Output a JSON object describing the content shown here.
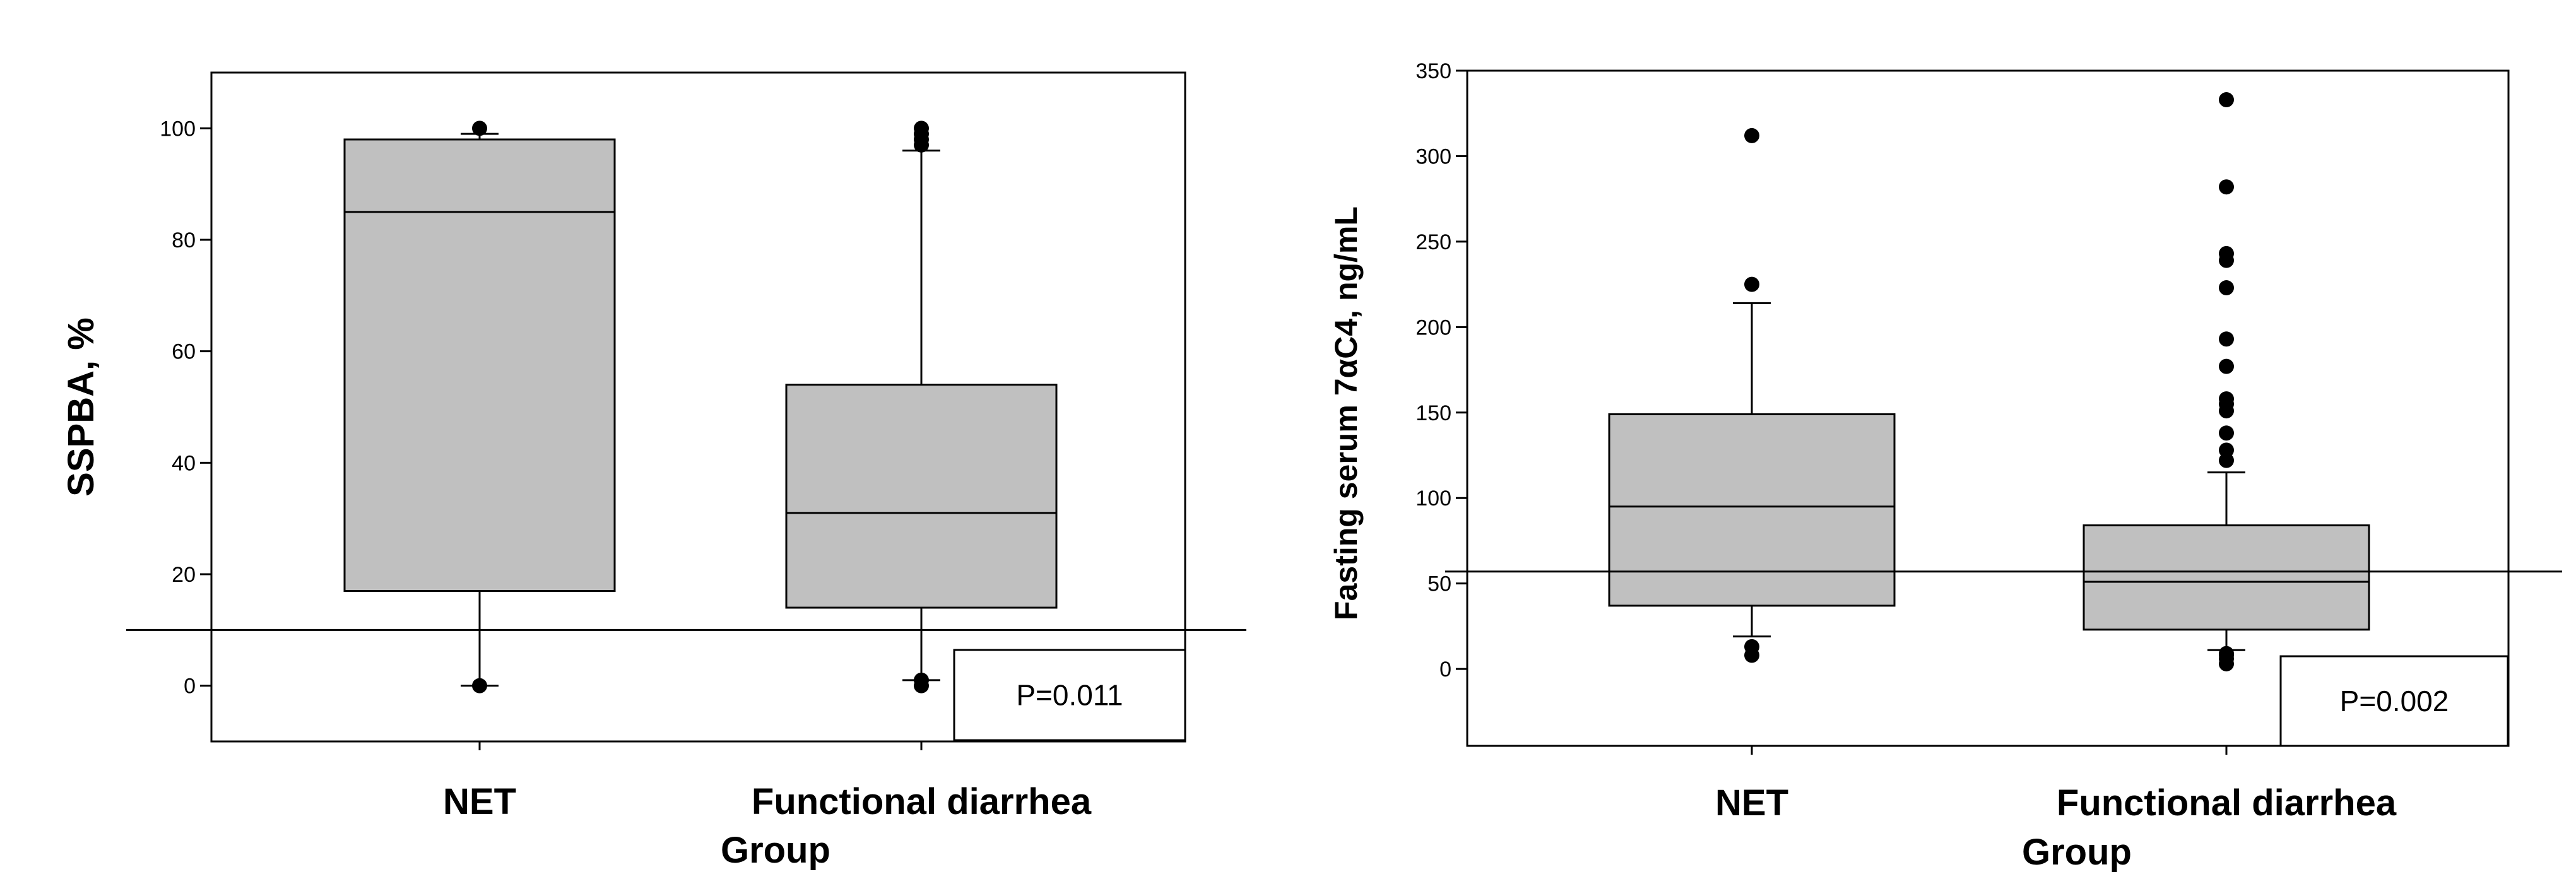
{
  "chart_data": [
    {
      "type": "box",
      "ylabel": "SSPBA, %",
      "ylim": [
        -10,
        110
      ],
      "yticks": [
        0,
        20,
        40,
        60,
        80,
        100
      ],
      "categories": [
        "NET",
        "Functional diarrhea"
      ],
      "group_label": "Group",
      "reference_line": 10,
      "p_value": "P=0.011",
      "boxes": [
        {
          "whisker_low": 0,
          "q1": 17,
          "median": 85,
          "q3": 98,
          "whisker_high": 99,
          "outliers": [
            0,
            100
          ]
        },
        {
          "whisker_low": 1,
          "q1": 14,
          "median": 31,
          "q3": 54,
          "whisker_high": 96,
          "outliers": [
            0,
            1,
            97,
            98,
            99,
            100
          ]
        }
      ]
    },
    {
      "type": "box",
      "ylabel": "Fasting serum 7αC4, ng/mL",
      "ylim": [
        -45,
        350
      ],
      "yticks": [
        0,
        50,
        100,
        150,
        200,
        250,
        300,
        350
      ],
      "categories": [
        "NET",
        "Functional diarrhea"
      ],
      "group_label": "Group",
      "reference_line": 57,
      "p_value": "P=0.002",
      "boxes": [
        {
          "whisker_low": 19,
          "q1": 37,
          "median": 95,
          "q3": 149,
          "whisker_high": 214,
          "outliers": [
            8,
            13,
            225,
            312
          ]
        },
        {
          "whisker_low": 11,
          "q1": 23,
          "median": 51,
          "q3": 84,
          "whisker_high": 115,
          "outliers": [
            3,
            6,
            8,
            9,
            122,
            128,
            138,
            151,
            155,
            158,
            177,
            193,
            223,
            239,
            243,
            282,
            333
          ]
        }
      ]
    }
  ]
}
